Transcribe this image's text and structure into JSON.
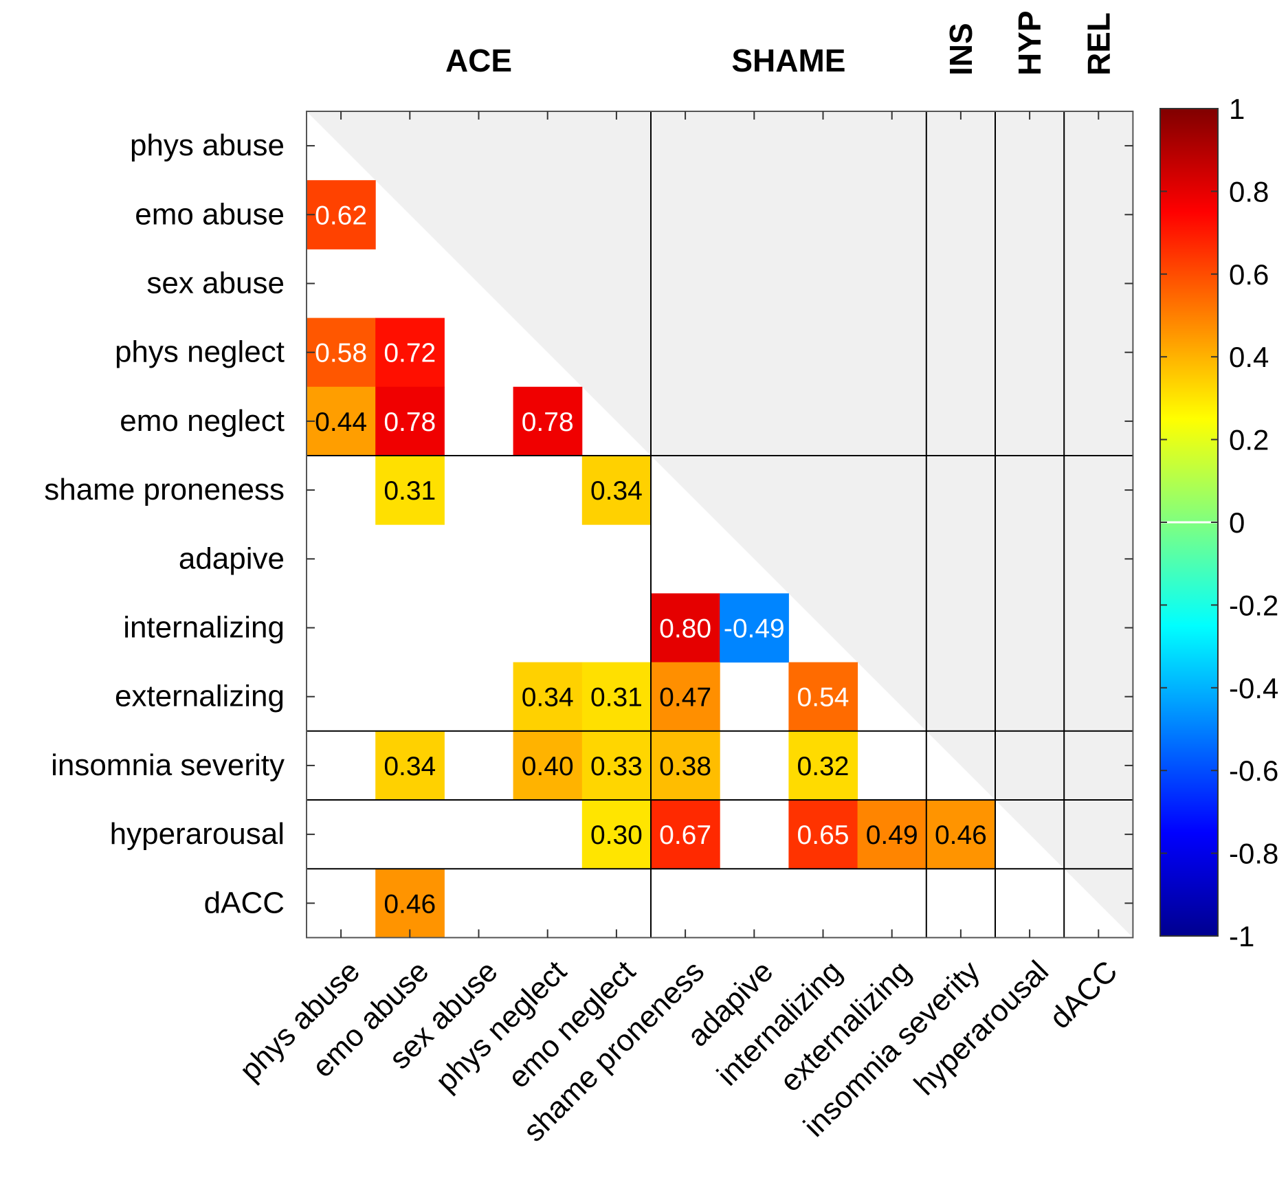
{
  "chart_data": {
    "type": "heatmap",
    "title": "",
    "row_labels": [
      "phys abuse",
      "emo abuse",
      "sex abuse",
      "phys neglect",
      "emo neglect",
      "shame proneness",
      "adapive",
      "internalizing",
      "externalizing",
      "insomnia severity",
      "hyperarousal",
      "dACC"
    ],
    "col_labels": [
      "phys abuse",
      "emo abuse",
      "sex abuse",
      "phys neglect",
      "emo neglect",
      "shame proneness",
      "adapive",
      "internalizing",
      "externalizing",
      "insomnia severity",
      "hyperarousal",
      "dACC"
    ],
    "groups": [
      {
        "label": "ACE",
        "start": 0,
        "end": 4,
        "vertical": false
      },
      {
        "label": "SHAME",
        "start": 5,
        "end": 8,
        "vertical": false
      },
      {
        "label": "INS",
        "start": 9,
        "end": 9,
        "vertical": true
      },
      {
        "label": "HYP",
        "start": 10,
        "end": 10,
        "vertical": true
      },
      {
        "label": "REL",
        "start": 11,
        "end": 11,
        "vertical": true
      }
    ],
    "cells": [
      {
        "row": 1,
        "col": 0,
        "value": 0.62,
        "label": "0.62"
      },
      {
        "row": 3,
        "col": 0,
        "value": 0.58,
        "label": "0.58"
      },
      {
        "row": 3,
        "col": 1,
        "value": 0.72,
        "label": "0.72"
      },
      {
        "row": 4,
        "col": 0,
        "value": 0.44,
        "label": "0.44"
      },
      {
        "row": 4,
        "col": 1,
        "value": 0.78,
        "label": "0.78"
      },
      {
        "row": 4,
        "col": 3,
        "value": 0.78,
        "label": "0.78"
      },
      {
        "row": 5,
        "col": 1,
        "value": 0.31,
        "label": "0.31"
      },
      {
        "row": 5,
        "col": 4,
        "value": 0.34,
        "label": "0.34"
      },
      {
        "row": 7,
        "col": 5,
        "value": 0.8,
        "label": "0.80"
      },
      {
        "row": 7,
        "col": 6,
        "value": -0.49,
        "label": "-0.49"
      },
      {
        "row": 8,
        "col": 3,
        "value": 0.34,
        "label": "0.34"
      },
      {
        "row": 8,
        "col": 4,
        "value": 0.31,
        "label": "0.31"
      },
      {
        "row": 8,
        "col": 5,
        "value": 0.47,
        "label": "0.47"
      },
      {
        "row": 8,
        "col": 7,
        "value": 0.54,
        "label": "0.54"
      },
      {
        "row": 9,
        "col": 1,
        "value": 0.34,
        "label": "0.34"
      },
      {
        "row": 9,
        "col": 3,
        "value": 0.4,
        "label": "0.40"
      },
      {
        "row": 9,
        "col": 4,
        "value": 0.33,
        "label": "0.33"
      },
      {
        "row": 9,
        "col": 5,
        "value": 0.38,
        "label": "0.38"
      },
      {
        "row": 9,
        "col": 7,
        "value": 0.32,
        "label": "0.32"
      },
      {
        "row": 10,
        "col": 4,
        "value": 0.3,
        "label": "0.30"
      },
      {
        "row": 10,
        "col": 5,
        "value": 0.67,
        "label": "0.67"
      },
      {
        "row": 10,
        "col": 7,
        "value": 0.65,
        "label": "0.65"
      },
      {
        "row": 10,
        "col": 8,
        "value": 0.49,
        "label": "0.49"
      },
      {
        "row": 10,
        "col": 9,
        "value": 0.46,
        "label": "0.46"
      },
      {
        "row": 11,
        "col": 1,
        "value": 0.46,
        "label": "0.46"
      }
    ],
    "colorbar": {
      "colormap": "jet",
      "range": [
        -1,
        1
      ],
      "ticks": [
        1,
        0.8,
        0.6,
        0.4,
        0.2,
        0,
        -0.2,
        -0.4,
        -0.6,
        -0.8,
        -1
      ],
      "tick_labels": [
        "1",
        "0.8",
        "0.6",
        "0.4",
        "0.2",
        "0",
        "-0.2",
        "-0.4",
        "-0.6",
        "-0.8",
        "-1"
      ]
    },
    "colors": {
      "upper_triangle_shade": "#f0f0f0",
      "grid_line": "#000000",
      "frame": "#555555"
    }
  }
}
